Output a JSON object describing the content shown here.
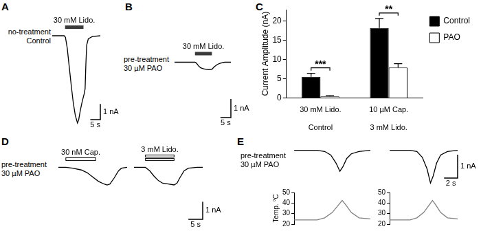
{
  "chart_data": [
    {
      "panel": "A",
      "type": "line",
      "label_lines": [
        "no-treatment",
        "Control"
      ],
      "color": "#000000",
      "x": [
        0,
        6,
        6.6,
        7.5,
        8.5,
        9.5,
        10.5,
        11.5,
        12.6,
        13.2,
        14,
        15,
        16,
        16.4,
        16.8,
        17.2,
        18,
        20,
        24
      ],
      "values": [
        0,
        0,
        -0.1,
        -0.8,
        -2.0,
        -3.2,
        -4.3,
        -5.1,
        -5.6,
        -5.4,
        -4.8,
        -4.2,
        -3.7,
        -3.4,
        -1.8,
        -0.6,
        -0.2,
        -0.05,
        0
      ],
      "xlim": [
        0,
        24
      ],
      "ylim": [
        -6,
        1.5
      ],
      "tick_labels": false,
      "stimuli": [
        {
          "label": "30 mM Lido.",
          "start": 6.4,
          "end": 15.6,
          "line_style": "filled"
        }
      ],
      "scale_bars": {
        "x": 5,
        "x_label": "5 s",
        "y": 1,
        "y_label": "1 nA"
      }
    },
    {
      "panel": "B",
      "type": "line",
      "label_lines": [
        "pre-treatment",
        "30 µM PAO"
      ],
      "color": "#000000",
      "x": [
        0,
        9.8,
        10.5,
        11.5,
        12.5,
        14,
        16,
        17.9,
        19,
        20.5,
        22,
        24,
        27
      ],
      "values": [
        0,
        0,
        -0.05,
        -0.2,
        -0.3,
        -0.36,
        -0.4,
        -0.38,
        -0.25,
        -0.12,
        -0.05,
        0,
        0
      ],
      "xlim": [
        0,
        27
      ],
      "ylim": [
        -3.5,
        1.5
      ],
      "tick_labels": false,
      "stimuli": [
        {
          "label": "30 mM Lido.",
          "start": 9.8,
          "end": 17.9,
          "line_style": "filled"
        }
      ],
      "scale_bars": {
        "x": 5,
        "x_label": "5 s",
        "y": 1,
        "y_label": "1 nA"
      }
    },
    {
      "panel": "C",
      "type": "bar",
      "categories": [
        "30 mM Lido.",
        "10 µM Cap."
      ],
      "groups": [
        "Control",
        "3 mM Lido."
      ],
      "series": [
        {
          "name": "Control",
          "color": "#000000",
          "values": [
            5.5,
            18.2
          ],
          "errors": [
            0.9,
            2.5
          ]
        },
        {
          "name": "PAO",
          "color": "#ffffff",
          "values": [
            0.4,
            7.9
          ],
          "errors": [
            0.2,
            1.0
          ]
        }
      ],
      "y_label": "Current Amplitude (nA)",
      "ylim": [
        0,
        23
      ],
      "yticks": [
        0,
        5,
        10,
        15,
        20
      ],
      "grid": false,
      "legend": "upper right",
      "significance": [
        "***",
        "**"
      ]
    },
    {
      "panel": "D",
      "type": "line",
      "label_lines": [
        "pre-treatment",
        "30 µM PAO"
      ],
      "color": "#000000",
      "x": [
        0,
        2.6,
        5,
        8,
        10,
        12,
        14,
        16,
        17,
        18,
        19.5,
        21,
        22,
        24
      ],
      "values": [
        0,
        0,
        -0.05,
        -0.15,
        -0.3,
        -0.55,
        -0.8,
        -0.95,
        -1.0,
        -0.95,
        -0.6,
        -0.2,
        -0.05,
        0
      ],
      "xlim": [
        0,
        24
      ],
      "ylim": [
        -3.5,
        1.5
      ],
      "tick_labels": false,
      "stimuli": [
        {
          "label": "30 nM Cap.",
          "start": 2.6,
          "end": 13,
          "line_style": "open"
        }
      ]
    },
    {
      "type": "line",
      "color": "#000000",
      "x": [
        0,
        4,
        5.5,
        7,
        8.5,
        10,
        12,
        14,
        15,
        16,
        17.5,
        19,
        22,
        24
      ],
      "values": [
        0,
        0,
        -0.2,
        -0.5,
        -0.75,
        -0.9,
        -0.95,
        -1.0,
        -0.9,
        -0.6,
        -0.2,
        -0.05,
        0,
        0
      ],
      "xlim": [
        0,
        24
      ],
      "ylim": [
        -3.5,
        1.5
      ],
      "tick_labels": false,
      "stimuli": [
        {
          "label": "3 mM Lido.",
          "start": 4,
          "end": 14,
          "line_style": "double"
        }
      ],
      "scale_bars": {
        "x": 5,
        "x_label": "5 s",
        "y": 1,
        "y_label": "1 nA"
      }
    },
    {
      "panel": "E",
      "type": "line",
      "label_lines": [
        "pre-treatment",
        "30 µM PAO"
      ],
      "color": "#000000",
      "x": [
        0,
        3,
        4,
        4.8,
        5.5,
        6,
        6.4,
        6.9,
        7.5,
        8.5,
        10
      ],
      "values": [
        0,
        0,
        -0.05,
        -0.2,
        -0.55,
        -0.9,
        -0.7,
        -0.35,
        -0.15,
        -0.05,
        0
      ],
      "xlim": [
        0,
        10
      ],
      "ylim": [
        -1.6,
        0.4
      ],
      "tick_labels": false
    },
    {
      "type": "line",
      "color": "#000000",
      "x": [
        0,
        3,
        4,
        4.8,
        5.5,
        6,
        6.4,
        6.9,
        7.5,
        8.5,
        10
      ],
      "values": [
        0,
        0,
        -0.05,
        -0.3,
        -0.8,
        -1.4,
        -1.1,
        -0.55,
        -0.2,
        -0.05,
        0
      ],
      "xlim": [
        0,
        10
      ],
      "ylim": [
        -1.6,
        0.4
      ],
      "tick_labels": false,
      "scale_bars": {
        "x": 2,
        "x_label": "2 s",
        "y": 1,
        "y_label": "1 nA"
      }
    },
    {
      "type": "line",
      "color": "#808080",
      "y_label": "Temp. °C",
      "x": [
        0,
        3,
        4,
        5,
        5.8,
        6.3,
        6.8,
        7.5,
        8.5,
        10
      ],
      "values": [
        24,
        24,
        26,
        31,
        38,
        42.5,
        38,
        31,
        26,
        25
      ],
      "xlim": [
        0,
        10
      ],
      "ylim": [
        20,
        50
      ],
      "yticks": [
        20,
        30,
        40,
        50
      ],
      "tick_labels": "y",
      "grid": false
    },
    {
      "type": "line",
      "color": "#808080",
      "x": [
        0,
        3,
        4,
        5,
        5.8,
        6.3,
        6.8,
        7.5,
        8.5,
        10
      ],
      "values": [
        24,
        24,
        26,
        31,
        38,
        42.5,
        38,
        31,
        26,
        25
      ],
      "xlim": [
        0,
        10
      ],
      "ylim": [
        20,
        50
      ],
      "yticks": [
        20,
        30,
        40,
        50
      ],
      "tick_labels": "y",
      "grid": false
    }
  ]
}
